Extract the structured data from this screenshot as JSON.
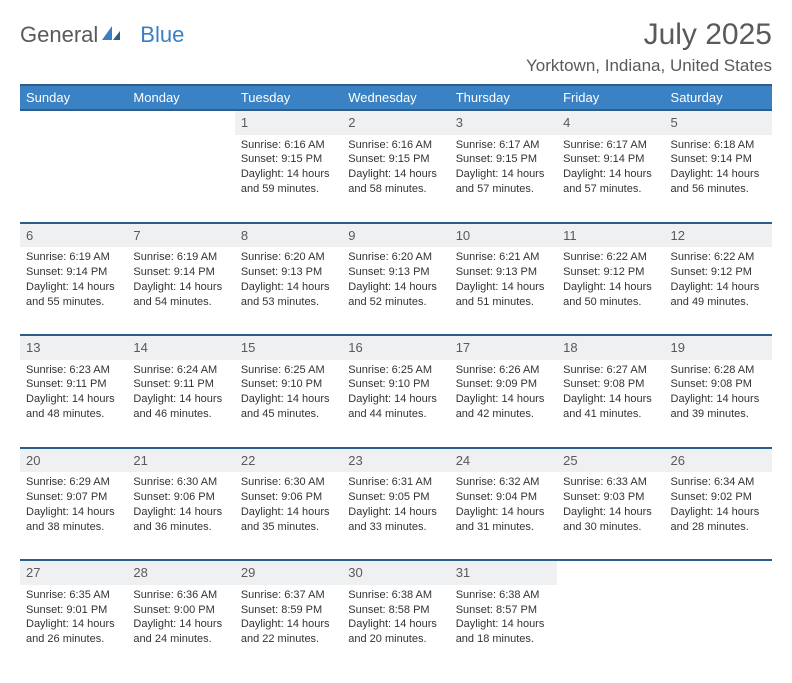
{
  "logo": {
    "text1": "General",
    "text2": "Blue"
  },
  "title": "July 2025",
  "location": "Yorktown, Indiana, United States",
  "colors": {
    "header_bg": "#3a82c4",
    "header_text": "#ffffff",
    "border_top": "#2d5d8a",
    "daynum_bg": "#eef0f2",
    "text": "#333333",
    "muted": "#5a5a5a",
    "accent": "#3a7fc4",
    "page_bg": "#ffffff"
  },
  "fonts": {
    "base": "Arial",
    "title_size": 30,
    "location_size": 17,
    "header_size": 13,
    "cell_size": 11
  },
  "columns": [
    "Sunday",
    "Monday",
    "Tuesday",
    "Wednesday",
    "Thursday",
    "Friday",
    "Saturday"
  ],
  "weeks": [
    {
      "days": [
        {
          "num": "",
          "sunrise": "",
          "sunset": "",
          "daylight": ""
        },
        {
          "num": "",
          "sunrise": "",
          "sunset": "",
          "daylight": ""
        },
        {
          "num": "1",
          "sunrise": "Sunrise: 6:16 AM",
          "sunset": "Sunset: 9:15 PM",
          "daylight": "Daylight: 14 hours and 59 minutes."
        },
        {
          "num": "2",
          "sunrise": "Sunrise: 6:16 AM",
          "sunset": "Sunset: 9:15 PM",
          "daylight": "Daylight: 14 hours and 58 minutes."
        },
        {
          "num": "3",
          "sunrise": "Sunrise: 6:17 AM",
          "sunset": "Sunset: 9:15 PM",
          "daylight": "Daylight: 14 hours and 57 minutes."
        },
        {
          "num": "4",
          "sunrise": "Sunrise: 6:17 AM",
          "sunset": "Sunset: 9:14 PM",
          "daylight": "Daylight: 14 hours and 57 minutes."
        },
        {
          "num": "5",
          "sunrise": "Sunrise: 6:18 AM",
          "sunset": "Sunset: 9:14 PM",
          "daylight": "Daylight: 14 hours and 56 minutes."
        }
      ]
    },
    {
      "days": [
        {
          "num": "6",
          "sunrise": "Sunrise: 6:19 AM",
          "sunset": "Sunset: 9:14 PM",
          "daylight": "Daylight: 14 hours and 55 minutes."
        },
        {
          "num": "7",
          "sunrise": "Sunrise: 6:19 AM",
          "sunset": "Sunset: 9:14 PM",
          "daylight": "Daylight: 14 hours and 54 minutes."
        },
        {
          "num": "8",
          "sunrise": "Sunrise: 6:20 AM",
          "sunset": "Sunset: 9:13 PM",
          "daylight": "Daylight: 14 hours and 53 minutes."
        },
        {
          "num": "9",
          "sunrise": "Sunrise: 6:20 AM",
          "sunset": "Sunset: 9:13 PM",
          "daylight": "Daylight: 14 hours and 52 minutes."
        },
        {
          "num": "10",
          "sunrise": "Sunrise: 6:21 AM",
          "sunset": "Sunset: 9:13 PM",
          "daylight": "Daylight: 14 hours and 51 minutes."
        },
        {
          "num": "11",
          "sunrise": "Sunrise: 6:22 AM",
          "sunset": "Sunset: 9:12 PM",
          "daylight": "Daylight: 14 hours and 50 minutes."
        },
        {
          "num": "12",
          "sunrise": "Sunrise: 6:22 AM",
          "sunset": "Sunset: 9:12 PM",
          "daylight": "Daylight: 14 hours and 49 minutes."
        }
      ]
    },
    {
      "days": [
        {
          "num": "13",
          "sunrise": "Sunrise: 6:23 AM",
          "sunset": "Sunset: 9:11 PM",
          "daylight": "Daylight: 14 hours and 48 minutes."
        },
        {
          "num": "14",
          "sunrise": "Sunrise: 6:24 AM",
          "sunset": "Sunset: 9:11 PM",
          "daylight": "Daylight: 14 hours and 46 minutes."
        },
        {
          "num": "15",
          "sunrise": "Sunrise: 6:25 AM",
          "sunset": "Sunset: 9:10 PM",
          "daylight": "Daylight: 14 hours and 45 minutes."
        },
        {
          "num": "16",
          "sunrise": "Sunrise: 6:25 AM",
          "sunset": "Sunset: 9:10 PM",
          "daylight": "Daylight: 14 hours and 44 minutes."
        },
        {
          "num": "17",
          "sunrise": "Sunrise: 6:26 AM",
          "sunset": "Sunset: 9:09 PM",
          "daylight": "Daylight: 14 hours and 42 minutes."
        },
        {
          "num": "18",
          "sunrise": "Sunrise: 6:27 AM",
          "sunset": "Sunset: 9:08 PM",
          "daylight": "Daylight: 14 hours and 41 minutes."
        },
        {
          "num": "19",
          "sunrise": "Sunrise: 6:28 AM",
          "sunset": "Sunset: 9:08 PM",
          "daylight": "Daylight: 14 hours and 39 minutes."
        }
      ]
    },
    {
      "days": [
        {
          "num": "20",
          "sunrise": "Sunrise: 6:29 AM",
          "sunset": "Sunset: 9:07 PM",
          "daylight": "Daylight: 14 hours and 38 minutes."
        },
        {
          "num": "21",
          "sunrise": "Sunrise: 6:30 AM",
          "sunset": "Sunset: 9:06 PM",
          "daylight": "Daylight: 14 hours and 36 minutes."
        },
        {
          "num": "22",
          "sunrise": "Sunrise: 6:30 AM",
          "sunset": "Sunset: 9:06 PM",
          "daylight": "Daylight: 14 hours and 35 minutes."
        },
        {
          "num": "23",
          "sunrise": "Sunrise: 6:31 AM",
          "sunset": "Sunset: 9:05 PM",
          "daylight": "Daylight: 14 hours and 33 minutes."
        },
        {
          "num": "24",
          "sunrise": "Sunrise: 6:32 AM",
          "sunset": "Sunset: 9:04 PM",
          "daylight": "Daylight: 14 hours and 31 minutes."
        },
        {
          "num": "25",
          "sunrise": "Sunrise: 6:33 AM",
          "sunset": "Sunset: 9:03 PM",
          "daylight": "Daylight: 14 hours and 30 minutes."
        },
        {
          "num": "26",
          "sunrise": "Sunrise: 6:34 AM",
          "sunset": "Sunset: 9:02 PM",
          "daylight": "Daylight: 14 hours and 28 minutes."
        }
      ]
    },
    {
      "days": [
        {
          "num": "27",
          "sunrise": "Sunrise: 6:35 AM",
          "sunset": "Sunset: 9:01 PM",
          "daylight": "Daylight: 14 hours and 26 minutes."
        },
        {
          "num": "28",
          "sunrise": "Sunrise: 6:36 AM",
          "sunset": "Sunset: 9:00 PM",
          "daylight": "Daylight: 14 hours and 24 minutes."
        },
        {
          "num": "29",
          "sunrise": "Sunrise: 6:37 AM",
          "sunset": "Sunset: 8:59 PM",
          "daylight": "Daylight: 14 hours and 22 minutes."
        },
        {
          "num": "30",
          "sunrise": "Sunrise: 6:38 AM",
          "sunset": "Sunset: 8:58 PM",
          "daylight": "Daylight: 14 hours and 20 minutes."
        },
        {
          "num": "31",
          "sunrise": "Sunrise: 6:38 AM",
          "sunset": "Sunset: 8:57 PM",
          "daylight": "Daylight: 14 hours and 18 minutes."
        },
        {
          "num": "",
          "sunrise": "",
          "sunset": "",
          "daylight": ""
        },
        {
          "num": "",
          "sunrise": "",
          "sunset": "",
          "daylight": ""
        }
      ]
    }
  ]
}
